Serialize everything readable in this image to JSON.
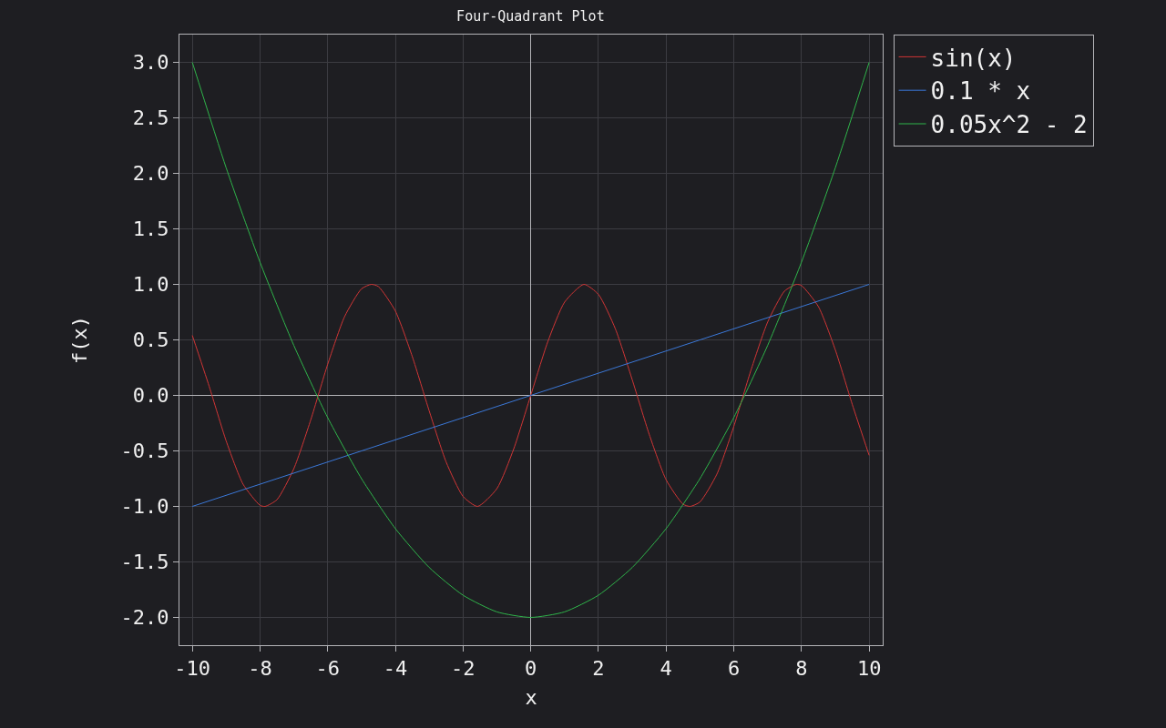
{
  "chart_data": {
    "type": "line",
    "title": "Four-Quadrant Plot",
    "xlabel": "x",
    "ylabel": "f(x)",
    "series": [
      {
        "name": "sin(x)",
        "color": "#d03535",
        "x": [
          -10,
          -9.5,
          -9,
          -8.5,
          -8,
          -7.85,
          -7.5,
          -7,
          -6.5,
          -6,
          -5.5,
          -5,
          -4.71,
          -4.5,
          -4,
          -3.5,
          -3,
          -2.5,
          -2,
          -1.57,
          -1,
          -0.5,
          0,
          0.5,
          1,
          1.57,
          2,
          2.5,
          3,
          3.5,
          4,
          4.5,
          4.71,
          5,
          5.5,
          6,
          6.5,
          7,
          7.5,
          7.85,
          8,
          8.5,
          9,
          9.5,
          10
        ],
        "values": [
          0.54,
          0.08,
          -0.41,
          -0.8,
          -0.99,
          -1.0,
          -0.94,
          -0.66,
          -0.22,
          0.28,
          0.71,
          0.96,
          1.0,
          0.98,
          0.76,
          0.35,
          -0.14,
          -0.6,
          -0.91,
          -1.0,
          -0.84,
          -0.48,
          0,
          0.48,
          0.84,
          1.0,
          0.91,
          0.6,
          0.14,
          -0.35,
          -0.76,
          -0.98,
          -1.0,
          -0.96,
          -0.71,
          -0.28,
          0.22,
          0.66,
          0.94,
          1.0,
          0.99,
          0.8,
          0.41,
          -0.08,
          -0.54
        ]
      },
      {
        "name": "0.1 * x",
        "color": "#3b78d8",
        "x": [
          -10,
          10
        ],
        "values": [
          -1,
          1
        ]
      },
      {
        "name": "0.05x^2 - 2",
        "color": "#2fb44a",
        "x": [
          -10,
          -9,
          -8,
          -7,
          -6,
          -5,
          -4,
          -3,
          -2,
          -1,
          0,
          1,
          2,
          3,
          4,
          5,
          6,
          7,
          8,
          9,
          10
        ],
        "values": [
          3,
          2.05,
          1.2,
          0.45,
          -0.2,
          -0.75,
          -1.2,
          -1.55,
          -1.8,
          -1.95,
          -2,
          -1.95,
          -1.8,
          -1.55,
          -1.2,
          -0.75,
          -0.2,
          0.45,
          1.2,
          2.05,
          3
        ]
      }
    ],
    "xlim": [
      -10.38,
      10.4
    ],
    "ylim": [
      -2.25,
      3.25
    ],
    "xticks": [
      -10,
      -8,
      -6,
      -4,
      -2,
      0,
      2,
      4,
      6,
      8,
      10
    ],
    "yticks": [
      {
        "value": -2,
        "label": "-2.0"
      },
      {
        "value": -1.5,
        "label": "-1.5"
      },
      {
        "value": -1,
        "label": "-1.0"
      },
      {
        "value": -0.5,
        "label": "-0.5"
      },
      {
        "value": 0,
        "label": "0.0"
      },
      {
        "value": 0.5,
        "label": "0.5"
      },
      {
        "value": 1,
        "label": "1.0"
      },
      {
        "value": 1.5,
        "label": "1.5"
      },
      {
        "value": 2,
        "label": "2.0"
      },
      {
        "value": 2.5,
        "label": "2.5"
      },
      {
        "value": 3,
        "label": "3.0"
      }
    ],
    "grid": true,
    "legend": "top right",
    "marker": "none",
    "line_style": "solid"
  }
}
